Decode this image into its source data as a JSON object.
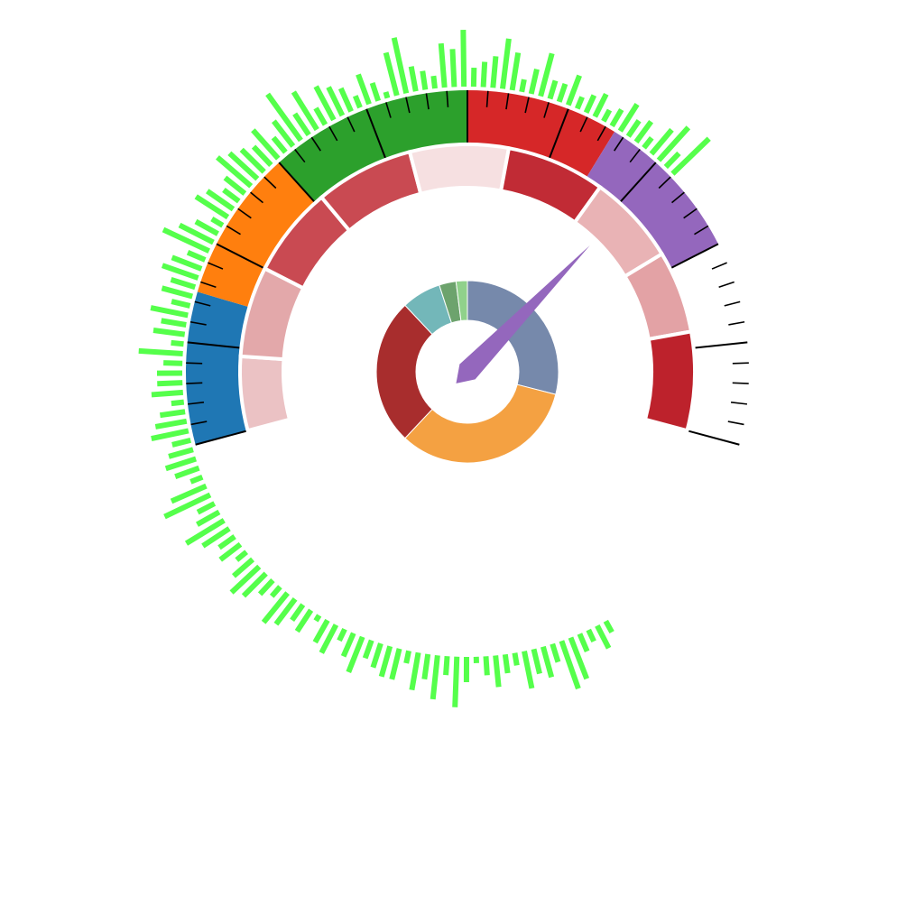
{
  "chart_data": {
    "type": "gauge",
    "title": "",
    "scale": {
      "min": 0,
      "max": 100,
      "arc_start_deg": -105,
      "arc_end_deg": 105
    },
    "needle": {
      "value": 71,
      "color": "#9467bd"
    },
    "outer_bands": [
      {
        "from": 0,
        "to": 15,
        "color": "#1f77b4"
      },
      {
        "from": 15,
        "to": 30,
        "color": "#ff7f0e"
      },
      {
        "from": 30,
        "to": 50,
        "color": "#2ca02c"
      },
      {
        "from": 50,
        "to": 65,
        "color": "#d62728"
      },
      {
        "from": 65,
        "to": 80,
        "color": "#9467bd"
      }
    ],
    "inner_segments": [
      {
        "from": 0,
        "to": 9,
        "color": "#ebc2c4"
      },
      {
        "from": 9,
        "to": 20,
        "color": "#e3a8aa"
      },
      {
        "from": 20,
        "to": 31,
        "color": "#c94a52"
      },
      {
        "from": 31,
        "to": 43,
        "color": "#c94a52"
      },
      {
        "from": 43,
        "to": 55,
        "color": "#f6e0e1"
      },
      {
        "from": 55,
        "to": 67,
        "color": "#c12b35"
      },
      {
        "from": 67,
        "to": 78,
        "color": "#e9b3b5"
      },
      {
        "from": 78,
        "to": 88,
        "color": "#e3a2a5"
      },
      {
        "from": 88,
        "to": 100,
        "color": "#bd222c"
      }
    ],
    "ticks": {
      "major_step": 10,
      "minor_step": 2
    },
    "spectrum_bars": {
      "color": "#55ff4b",
      "start_deg": -210,
      "end_deg": 47,
      "values": [
        0.2,
        0.4,
        0.2,
        0.3,
        0.7,
        0.8,
        0.3,
        0.5,
        0.4,
        0.6,
        0.2,
        0.3,
        0.5,
        0.3,
        0.1,
        0.4,
        0.8,
        0.3,
        0.7,
        0.4,
        0.6,
        0.2,
        0.5,
        0.5,
        0.4,
        0.3,
        0.6,
        0.4,
        0.2,
        0.5,
        0.4,
        0.1,
        0.4,
        0.3,
        0.5,
        0.6,
        0.2,
        0.3,
        0.5,
        0.6,
        0.4,
        0.2,
        0.4,
        0.3,
        0.5,
        0.7,
        0.4,
        0.3,
        0.8,
        0.6,
        0.2,
        0.4,
        0.5,
        0.4,
        0.3,
        0.6,
        0.5,
        0.4,
        0.2,
        0.5,
        0.4,
        0.4,
        0.3,
        0.7,
        0.2,
        0.5,
        0.4,
        0.6,
        0.3,
        0.5,
        0.4,
        0.6,
        0.5,
        0.3,
        0.8,
        0.6,
        0.4,
        0.2,
        0.6,
        0.5,
        0.3,
        0.4,
        0.7,
        0.6,
        0.5,
        0.4,
        0.6,
        0.3,
        0.5,
        0.9,
        0.4,
        0.7,
        0.3,
        0.6,
        0.5,
        0.4,
        0.2,
        0.5,
        0.3,
        0.1,
        0.7,
        0.9,
        0.4,
        0.3,
        0.2,
        0.7,
        0.6,
        0.9,
        0.3,
        0.4,
        0.5,
        0.8,
        0.6,
        0.2,
        0.4,
        0.7,
        0.3,
        0.3,
        0.5,
        0.2,
        0.3,
        0.4,
        0.2,
        0.3,
        0.5,
        0.3,
        0.4,
        0.2,
        0.5,
        0.7,
        0.3,
        0.8
      ]
    },
    "donut": {
      "segments": [
        {
          "value": 29,
          "color": "#7689ab"
        },
        {
          "value": 33,
          "color": "#f4a142"
        },
        {
          "value": 26,
          "color": "#a82d2d"
        },
        {
          "value": 7,
          "color": "#73b7b9"
        },
        {
          "value": 3,
          "color": "#6da36d"
        },
        {
          "value": 2,
          "color": "#90d18b"
        }
      ]
    }
  }
}
